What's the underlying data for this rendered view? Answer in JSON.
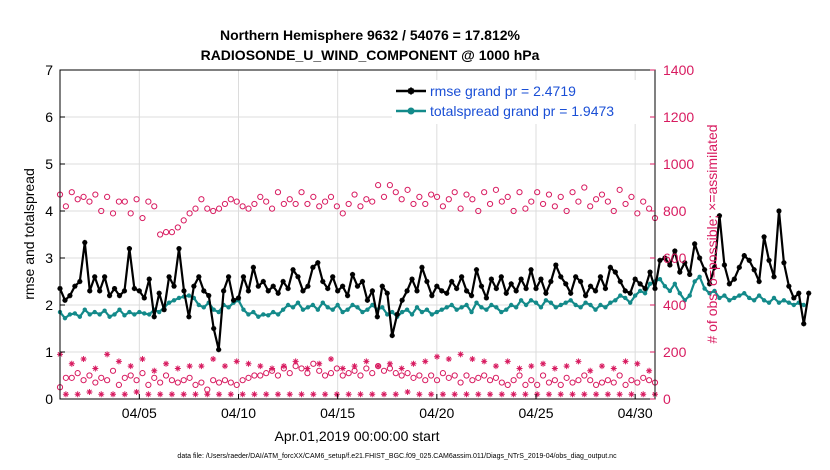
{
  "chart_data": {
    "type": "line",
    "title_line1": "Northern Hemisphere 9632 / 54076 = 17.812%",
    "title_line2": "RADIOSONDE_U_WIND_COMPONENT @ 1000 hPa",
    "xlabel": "Apr.01,2019 00:00:00 start",
    "ylabel_left": "rmse and totalspread",
    "ylabel_right": "# of obs: o=possible; ×=assimilated",
    "xlim": [
      1,
      31
    ],
    "ylim_left": [
      0,
      7
    ],
    "ylim_right": [
      0,
      1400
    ],
    "xticks": [
      {
        "value": 5,
        "label": "04/05"
      },
      {
        "value": 10,
        "label": "04/10"
      },
      {
        "value": 15,
        "label": "04/15"
      },
      {
        "value": 20,
        "label": "04/20"
      },
      {
        "value": 25,
        "label": "04/25"
      },
      {
        "value": 30,
        "label": "04/30"
      }
    ],
    "yticks_left": [
      "0",
      "1",
      "2",
      "3",
      "4",
      "5",
      "6",
      "7"
    ],
    "yticks_right": [
      "0",
      "200",
      "400",
      "600",
      "800",
      "1000",
      "1200",
      "1400"
    ],
    "legend": {
      "location": "top-right",
      "rmse_label": "rmse grand pr = 2.4719",
      "spread_label": "totalspread grand pr = 1.9473"
    },
    "colors": {
      "rmse": "#000000",
      "spread": "#138a8a",
      "obs": "#d81b60",
      "legend_text": "#1a4fd6"
    },
    "x_start": 1,
    "x_step": 0.25,
    "series": [
      {
        "name": "rmse",
        "axis": "left",
        "values": [
          2.35,
          2.1,
          2.2,
          2.4,
          2.5,
          3.33,
          2.3,
          2.6,
          2.3,
          2.6,
          2.2,
          2.35,
          2.2,
          2.3,
          3.2,
          2.35,
          2.3,
          2.15,
          2.55,
          1.75,
          2.25,
          1.9,
          2.6,
          2.4,
          3.2,
          2.3,
          1.75,
          2.4,
          2.6,
          2.3,
          2.2,
          1.5,
          1.05,
          2.3,
          2.6,
          2.1,
          2.15,
          2.6,
          2.3,
          2.8,
          2.4,
          2.5,
          2.3,
          2.4,
          2.25,
          2.5,
          2.35,
          2.75,
          2.6,
          2.3,
          2.4,
          2.8,
          2.9,
          2.5,
          2.35,
          2.6,
          2.3,
          2.4,
          2.2,
          2.65,
          2.4,
          2.5,
          2.1,
          2.3,
          1.75,
          2.4,
          2.25,
          1.35,
          1.8,
          2.1,
          2.3,
          2.55,
          2.3,
          2.8,
          2.5,
          2.2,
          2.4,
          2.3,
          2.25,
          2.5,
          2.35,
          2.6,
          2.3,
          2.2,
          2.75,
          2.4,
          2.15,
          2.55,
          2.35,
          2.6,
          2.25,
          2.45,
          2.3,
          2.55,
          2.35,
          2.75,
          2.35,
          2.55,
          2.25,
          2.5,
          2.85,
          2.6,
          2.45,
          2.25,
          2.6,
          2.5,
          2.2,
          2.4,
          2.3,
          2.6,
          2.35,
          2.8,
          2.7,
          2.5,
          2.3,
          2.25,
          2.55,
          2.45,
          2.35,
          2.7,
          2.35,
          2.95,
          3.0,
          2.85,
          3.15,
          2.7,
          2.9,
          2.65,
          3.3,
          3.0,
          2.75,
          2.45,
          2.8,
          3.9,
          2.85,
          2.45,
          2.55,
          2.8,
          3.05,
          2.95,
          2.75,
          2.5,
          3.45,
          2.95,
          2.6,
          4.0,
          2.9,
          2.4,
          2.15,
          2.25,
          1.6,
          2.25
        ]
      },
      {
        "name": "totalspread",
        "axis": "left",
        "values": [
          1.85,
          1.72,
          1.8,
          1.82,
          1.75,
          1.9,
          1.8,
          1.85,
          1.8,
          1.88,
          1.75,
          1.8,
          1.9,
          1.78,
          1.85,
          1.8,
          1.85,
          1.82,
          1.8,
          1.9,
          1.85,
          1.95,
          2.05,
          2.1,
          2.15,
          2.18,
          2.2,
          2.15,
          2.0,
          1.95,
          2.05,
          1.9,
          1.85,
          2.0,
          1.95,
          2.05,
          2.1,
          1.9,
          1.8,
          1.85,
          1.75,
          1.8,
          1.78,
          1.85,
          1.8,
          1.9,
          2.0,
          1.95,
          2.05,
          1.9,
          1.95,
          2.0,
          1.9,
          2.05,
          1.95,
          1.9,
          2.0,
          1.85,
          1.9,
          2.0,
          1.95,
          1.85,
          1.9,
          2.0,
          1.9,
          1.95,
          1.8,
          1.85,
          1.75,
          1.85,
          1.9,
          1.8,
          1.95,
          1.85,
          1.9,
          1.8,
          1.85,
          1.9,
          1.95,
          2.0,
          1.9,
          1.95,
          2.0,
          1.85,
          2.05,
          1.95,
          1.9,
          2.0,
          1.95,
          1.85,
          1.9,
          2.0,
          1.95,
          2.1,
          2.0,
          2.1,
          2.05,
          1.95,
          2.1,
          2.05,
          1.95,
          2.0,
          2.05,
          2.1,
          2.0,
          1.95,
          2.05,
          2.0,
          1.9,
          2.0,
          1.95,
          2.05,
          2.1,
          2.2,
          2.15,
          2.05,
          2.2,
          2.3,
          2.25,
          2.45,
          2.5,
          2.55,
          2.4,
          2.3,
          2.45,
          2.25,
          2.1,
          2.2,
          2.5,
          2.6,
          2.35,
          2.25,
          2.3,
          2.15,
          2.2,
          2.1,
          2.15,
          2.2,
          2.25,
          2.15,
          2.1,
          2.2,
          2.1,
          2.05,
          2.15,
          2.05,
          2.1,
          2.05,
          2.0,
          2.05,
          2.0
        ]
      },
      {
        "name": "possible",
        "axis": "right",
        "marker": "circle",
        "values": [
          870,
          820,
          880,
          850,
          860,
          840,
          870,
          800,
          860,
          790,
          840,
          840,
          790,
          850,
          770,
          840,
          820,
          700,
          710,
          710,
          730,
          760,
          790,
          810,
          850,
          810,
          800,
          810,
          830,
          850,
          840,
          820,
          810,
          830,
          860,
          840,
          810,
          880,
          830,
          850,
          830,
          880,
          830,
          860,
          820,
          840,
          860,
          820,
          790,
          830,
          870,
          820,
          850,
          840,
          910,
          860,
          910,
          880,
          850,
          890,
          830,
          860,
          830,
          870,
          860,
          820,
          850,
          880,
          810,
          870,
          850,
          800,
          880,
          830,
          890,
          840,
          860,
          800,
          880,
          810,
          840,
          880,
          830,
          870,
          820,
          860,
          800,
          880,
          840,
          900,
          820,
          850,
          870,
          840,
          800,
          890,
          830,
          860,
          790,
          840,
          810,
          770
        ],
        "values_low": [
          50,
          90,
          90,
          110,
          80,
          100,
          70,
          90,
          80,
          120,
          60,
          90,
          100,
          80,
          110,
          60,
          90,
          70,
          100,
          80,
          70,
          80,
          90,
          60,
          70,
          40,
          80,
          70,
          80,
          70,
          60,
          80,
          90,
          100,
          100,
          110,
          120,
          100,
          130,
          110,
          140,
          130,
          110,
          150,
          120,
          100,
          110,
          130,
          100,
          110,
          120,
          100,
          130,
          110,
          140,
          120,
          130,
          110,
          100,
          110,
          90,
          100,
          80,
          100,
          80,
          110,
          90,
          100,
          70,
          100,
          80,
          90,
          100,
          80,
          90,
          70,
          60,
          80,
          100,
          60,
          80,
          60,
          100,
          70,
          80,
          60,
          90,
          70,
          80,
          100,
          80,
          60,
          70,
          80,
          70,
          100,
          60,
          80,
          70,
          90,
          80,
          70
        ]
      },
      {
        "name": "assimilated",
        "axis": "right",
        "marker": "asterisk",
        "values": [
          190,
          20,
          150,
          20,
          170,
          30,
          130,
          20,
          190,
          20,
          160,
          20,
          140,
          30,
          170,
          20,
          120,
          20,
          150,
          20,
          130,
          20,
          140,
          20,
          140,
          20,
          170,
          20,
          140,
          20,
          160,
          20,
          150,
          20,
          140,
          20,
          130,
          20,
          140,
          20,
          160,
          20,
          130,
          20,
          150,
          20,
          170,
          20,
          130,
          20,
          140,
          20,
          160,
          20,
          140,
          20,
          150,
          20,
          130,
          30,
          150,
          20,
          160,
          20,
          180,
          20,
          170,
          20,
          190,
          20,
          170,
          20,
          160,
          20,
          140,
          20,
          160,
          20,
          130,
          20,
          140,
          20,
          150,
          20,
          130,
          20,
          140,
          20,
          160,
          20,
          120,
          20,
          140,
          20,
          130,
          20,
          160,
          20,
          150,
          20,
          120,
          20
        ]
      }
    ]
  },
  "footer": {
    "data_file": "data file: /Users/raeder/DAI/ATM_forcXX/CAM6_setup/f.e21.FHIST_BGC.f09_025.CAM6assim.011/Diags_NTrS_2019-04/obs_diag_output.nc"
  }
}
